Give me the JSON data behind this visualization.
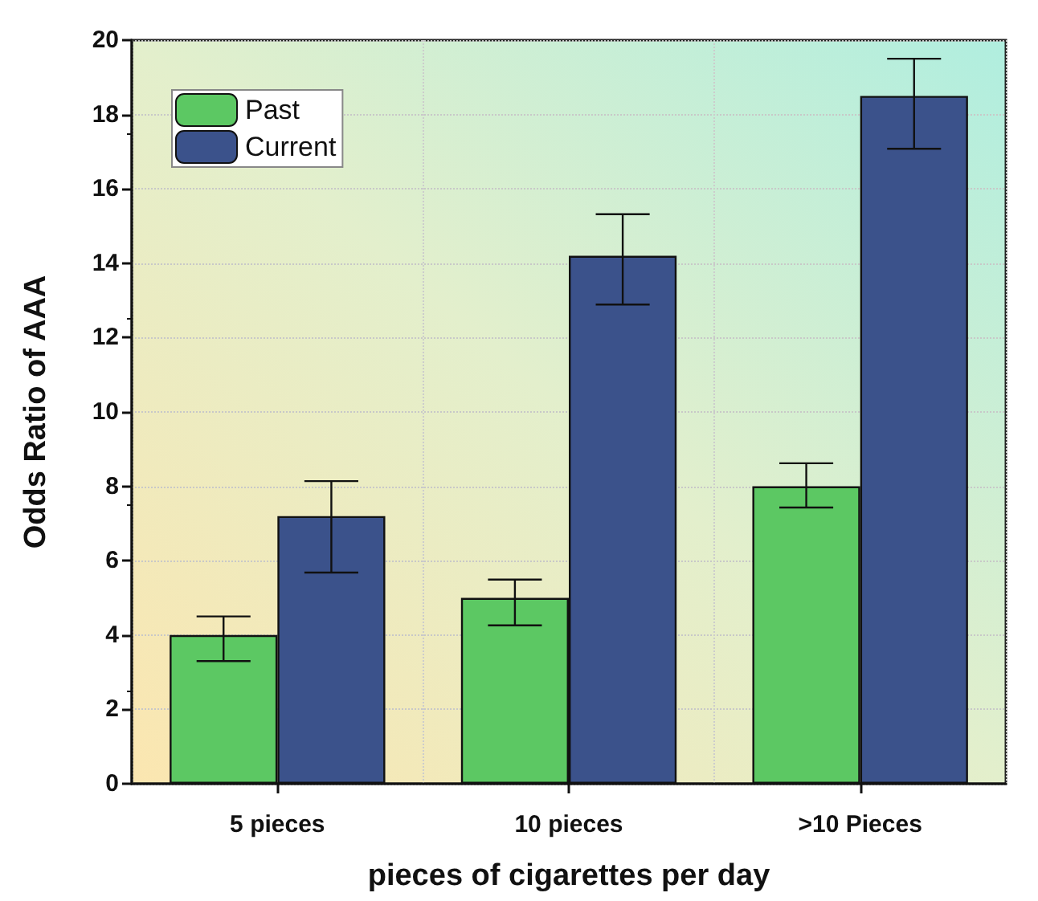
{
  "chart_data": {
    "type": "bar",
    "xlabel": "pieces of cigarettes per day",
    "ylabel": "Odds Ratio of AAA",
    "categories": [
      "5 pieces",
      "10 pieces",
      ">10 Pieces"
    ],
    "series": [
      {
        "name": "Past",
        "color": "#5cc863",
        "values": [
          4,
          5,
          8
        ],
        "errors": [
          [
            3.3,
            4.5
          ],
          [
            4.26,
            5.49
          ],
          [
            7.43,
            8.62
          ]
        ]
      },
      {
        "name": "Current",
        "color": "#3b528b",
        "values": [
          7.2,
          14.2,
          18.5
        ],
        "errors": [
          [
            5.68,
            8.14
          ],
          [
            12.89,
            15.32
          ],
          [
            17.08,
            19.5
          ]
        ]
      }
    ],
    "ylim": [
      0,
      20
    ],
    "yticks": [
      0,
      2,
      4,
      6,
      8,
      10,
      12,
      14,
      16,
      18,
      20
    ],
    "grid": true,
    "legend": "top left"
  }
}
